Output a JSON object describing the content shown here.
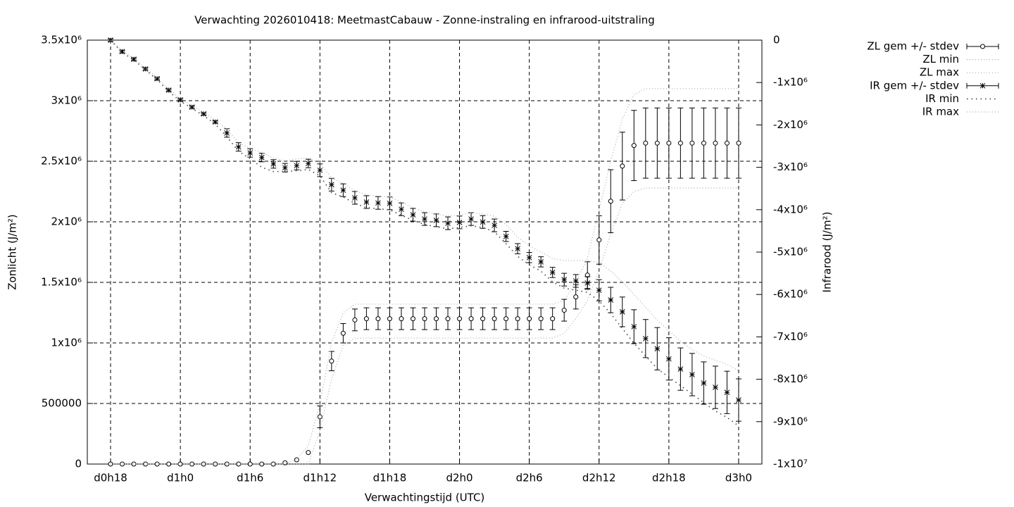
{
  "chart_data": {
    "type": "errorbar",
    "title": "Verwachting 2026010418: MeetmastCabauw - Zonne-instraling en infrarood-uitstraling",
    "x_label": "Verwachtingstijd (UTC)",
    "y_label": "Zonlicht (J/m²)",
    "y2_label": "Infrarood (J/m²)",
    "xlim": [
      16,
      74
    ],
    "xticks": [
      {
        "value": 18,
        "label": "d0h18"
      },
      {
        "value": 24,
        "label": "d1h0"
      },
      {
        "value": 30,
        "label": "d1h6"
      },
      {
        "value": 36,
        "label": "d1h12"
      },
      {
        "value": 42,
        "label": "d1h18"
      },
      {
        "value": 48,
        "label": "d2h0"
      },
      {
        "value": 54,
        "label": "d2h6"
      },
      {
        "value": 60,
        "label": "d2h12"
      },
      {
        "value": 66,
        "label": "d2h18"
      },
      {
        "value": 72,
        "label": "d3h0"
      }
    ],
    "ylim": [
      0,
      3500000
    ],
    "yticks": [
      0,
      500000,
      {
        "value": 1000000,
        "label": "1x10⁶"
      },
      {
        "value": 1500000,
        "label": "1.5x10⁶"
      },
      {
        "value": 2000000,
        "label": "2x10⁶"
      },
      {
        "value": 2500000,
        "label": "2.5x10⁶"
      },
      {
        "value": 3000000,
        "label": "3x10⁶"
      },
      {
        "value": 3500000,
        "label": "3.5x10⁶"
      }
    ],
    "y2lim": [
      -10000000,
      0
    ],
    "y2ticks": [
      0,
      {
        "value": -1000000,
        "label": "-1x10⁶"
      },
      {
        "value": -2000000,
        "label": "-2x10⁶"
      },
      {
        "value": -3000000,
        "label": "-3x10⁶"
      },
      {
        "value": -4000000,
        "label": "-4x10⁶"
      },
      {
        "value": -5000000,
        "label": "-5x10⁶"
      },
      {
        "value": -6000000,
        "label": "-6x10⁶"
      },
      {
        "value": -7000000,
        "label": "-7x10⁶"
      },
      {
        "value": -8000000,
        "label": "-8x10⁶"
      },
      {
        "value": -9000000,
        "label": "-9x10⁶"
      },
      {
        "value": -10000000,
        "label": "-1x10⁷"
      }
    ],
    "grid": true,
    "legend": "top-right",
    "x": [
      18,
      19,
      20,
      21,
      22,
      23,
      24,
      25,
      26,
      27,
      28,
      29,
      30,
      31,
      32,
      33,
      34,
      35,
      36,
      37,
      38,
      39,
      40,
      41,
      42,
      43,
      44,
      45,
      46,
      47,
      48,
      49,
      50,
      51,
      52,
      53,
      54,
      55,
      56,
      57,
      58,
      59,
      60,
      61,
      62,
      63,
      64,
      65,
      66,
      67,
      68,
      69,
      70,
      71,
      72
    ],
    "series": [
      {
        "name": "ZL gem +/- stdev",
        "color": "#000000",
        "marker": "circle",
        "values": [
          0,
          0,
          0,
          0,
          0,
          0,
          0,
          0,
          0,
          0,
          0,
          0,
          0,
          0,
          0,
          10000,
          35000,
          95000,
          390000,
          850000,
          1080000,
          1190000,
          1200000,
          1200000,
          1200000,
          1200000,
          1200000,
          1200000,
          1200000,
          1200000,
          1200000,
          1200000,
          1200000,
          1200000,
          1200000,
          1200000,
          1200000,
          1200000,
          1200000,
          1270000,
          1380000,
          1560000,
          1850000,
          2170000,
          2460000,
          2630000,
          2650000,
          2650000,
          2650000,
          2650000,
          2650000,
          2650000,
          2650000,
          2650000,
          2650000
        ],
        "errors": [
          0,
          0,
          0,
          0,
          0,
          0,
          0,
          0,
          0,
          0,
          0,
          0,
          0,
          0,
          0,
          0,
          0,
          0,
          90000,
          80000,
          80000,
          90000,
          90000,
          90000,
          90000,
          90000,
          90000,
          90000,
          90000,
          90000,
          90000,
          90000,
          90000,
          90000,
          90000,
          90000,
          90000,
          90000,
          90000,
          90000,
          100000,
          110000,
          200000,
          260000,
          280000,
          290000,
          290000,
          290000,
          290000,
          290000,
          290000,
          290000,
          290000,
          290000,
          290000
        ]
      },
      {
        "name": "ZL min",
        "color": "#aaaaaa",
        "marker": "dotted",
        "values": [
          0,
          0,
          0,
          0,
          0,
          0,
          0,
          0,
          0,
          0,
          0,
          0,
          0,
          0,
          0,
          0,
          0,
          0,
          280000,
          700000,
          980000,
          1040000,
          1040000,
          1040000,
          1040000,
          1040000,
          1040000,
          1040000,
          1040000,
          1040000,
          1040000,
          1040000,
          1040000,
          1040000,
          1040000,
          1040000,
          1040000,
          1040000,
          1040000,
          1080000,
          1200000,
          1350000,
          1600000,
          1900000,
          2150000,
          2250000,
          2280000,
          2280000,
          2280000,
          2280000,
          2280000,
          2280000,
          2280000,
          2280000,
          2280000
        ]
      },
      {
        "name": "ZL max",
        "color": "#aaaaaa",
        "marker": "dotted",
        "values": [
          0,
          0,
          0,
          0,
          0,
          0,
          0,
          0,
          0,
          0,
          0,
          0,
          0,
          0,
          0,
          0,
          40000,
          150000,
          500000,
          1000000,
          1250000,
          1320000,
          1320000,
          1320000,
          1320000,
          1320000,
          1320000,
          1320000,
          1320000,
          1320000,
          1320000,
          1320000,
          1320000,
          1320000,
          1320000,
          1320000,
          1320000,
          1320000,
          1320000,
          1350000,
          1500000,
          1700000,
          2100000,
          2500000,
          2850000,
          3050000,
          3100000,
          3100000,
          3100000,
          3100000,
          3100000,
          3100000,
          3100000,
          3100000,
          3100000
        ]
      },
      {
        "name": "IR gem +/- stdev",
        "color": "#000000",
        "marker": "asterisk",
        "axis": "y2",
        "values": [
          0,
          -270000,
          -450000,
          -680000,
          -910000,
          -1180000,
          -1410000,
          -1580000,
          -1740000,
          -1930000,
          -2190000,
          -2520000,
          -2660000,
          -2770000,
          -2920000,
          -3010000,
          -2960000,
          -2910000,
          -3070000,
          -3410000,
          -3540000,
          -3720000,
          -3820000,
          -3840000,
          -3850000,
          -3990000,
          -4120000,
          -4220000,
          -4250000,
          -4320000,
          -4300000,
          -4220000,
          -4290000,
          -4370000,
          -4630000,
          -4920000,
          -5130000,
          -5230000,
          -5480000,
          -5650000,
          -5680000,
          -5730000,
          -5900000,
          -6130000,
          -6410000,
          -6760000,
          -7040000,
          -7280000,
          -7520000,
          -7760000,
          -7890000,
          -8090000,
          -8190000,
          -8310000,
          -8490000
        ],
        "errors": [
          30000,
          30000,
          30000,
          30000,
          30000,
          30000,
          30000,
          30000,
          30000,
          30000,
          100000,
          100000,
          100000,
          100000,
          100000,
          100000,
          100000,
          100000,
          150000,
          150000,
          150000,
          150000,
          150000,
          150000,
          150000,
          150000,
          150000,
          150000,
          150000,
          150000,
          150000,
          150000,
          150000,
          150000,
          120000,
          120000,
          120000,
          120000,
          120000,
          150000,
          150000,
          150000,
          250000,
          300000,
          350000,
          400000,
          450000,
          500000,
          500000,
          500000,
          500000,
          500000,
          500000,
          500000,
          500000
        ]
      },
      {
        "name": "IR min",
        "color": "#444444",
        "marker": "dotted",
        "axis": "y2",
        "values": [
          0,
          -290000,
          -470000,
          -700000,
          -930000,
          -1210000,
          -1440000,
          -1610000,
          -1780000,
          -1980000,
          -2280000,
          -2620000,
          -2800000,
          -3000000,
          -3100000,
          -3100000,
          -3080000,
          -3050000,
          -3200000,
          -3600000,
          -3700000,
          -3850000,
          -3950000,
          -3980000,
          -4000000,
          -4130000,
          -4250000,
          -4350000,
          -4400000,
          -4450000,
          -4420000,
          -4380000,
          -4420000,
          -4520000,
          -4800000,
          -5100000,
          -5300000,
          -5450000,
          -5700000,
          -5850000,
          -5900000,
          -5950000,
          -6150000,
          -6450000,
          -6800000,
          -7150000,
          -7450000,
          -7750000,
          -7950000,
          -8150000,
          -8350000,
          -8550000,
          -8750000,
          -8900000,
          -9100000
        ]
      },
      {
        "name": "IR max",
        "color": "#aaaaaa",
        "marker": "dotted",
        "axis": "y2",
        "values": [
          0,
          -250000,
          -430000,
          -660000,
          -890000,
          -1150000,
          -1380000,
          -1550000,
          -1700000,
          -1880000,
          -2100000,
          -2420000,
          -2560000,
          -2650000,
          -2780000,
          -2850000,
          -2800000,
          -2780000,
          -2900000,
          -3250000,
          -3380000,
          -3550000,
          -3650000,
          -3680000,
          -3700000,
          -3820000,
          -3950000,
          -4050000,
          -4100000,
          -4150000,
          -4130000,
          -4070000,
          -4100000,
          -4150000,
          -4350000,
          -4650000,
          -4850000,
          -5000000,
          -5150000,
          -5200000,
          -5200000,
          -5200000,
          -5250000,
          -5450000,
          -5700000,
          -6000000,
          -6300000,
          -6600000,
          -6850000,
          -7100000,
          -7300000,
          -7450000,
          -7550000,
          -7650000,
          -7800000
        ]
      }
    ]
  }
}
